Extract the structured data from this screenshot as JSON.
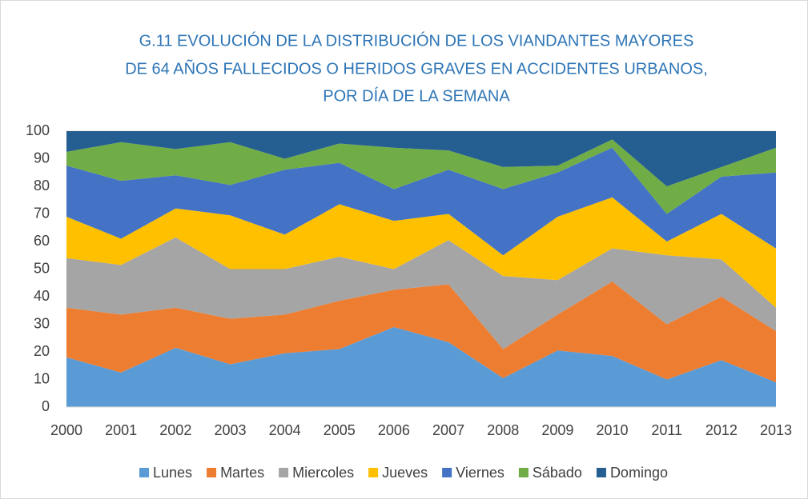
{
  "chart_data": {
    "type": "stacked-area",
    "title": [
      "G.11  EVOLUCIÓN DE LA DISTRIBUCIÓN DE LOS VIANDANTES MAYORES",
      "DE 64 AÑOS  FALLECIDOS O HERIDOS GRAVES EN ACCIDENTES URBANOS,",
      "POR  DÍA DE LA SEMANA"
    ],
    "categories": [
      "2000",
      "2001",
      "2002",
      "2003",
      "2004",
      "2005",
      "2006",
      "2007",
      "2008",
      "2009",
      "2010",
      "2011",
      "2012",
      "2013"
    ],
    "ylim": [
      0,
      100
    ],
    "yticks": [
      0,
      10,
      20,
      30,
      40,
      50,
      60,
      70,
      80,
      90,
      100
    ],
    "grid": true,
    "legend": "bottom",
    "series": [
      {
        "name": "Lunes",
        "color": "#5b9bd5",
        "values": [
          18,
          12.5,
          21.5,
          15.5,
          19.5,
          21,
          29,
          23.5,
          10.5,
          20.5,
          18.5,
          10,
          17,
          9
        ]
      },
      {
        "name": "Martes",
        "color": "#ed7d31",
        "values": [
          18,
          21,
          14.5,
          16.5,
          14,
          17.5,
          13.5,
          21,
          10.5,
          13,
          27,
          20,
          23,
          18.5
        ]
      },
      {
        "name": "Miercoles",
        "color": "#a5a5a5",
        "values": [
          18,
          18,
          25.5,
          18,
          16.5,
          16,
          7.5,
          16,
          26.5,
          12.5,
          12,
          25,
          13.5,
          8.5
        ]
      },
      {
        "name": "Jueves",
        "color": "#ffc000",
        "values": [
          15,
          9.5,
          10.5,
          19.5,
          12.5,
          19,
          17.5,
          9.5,
          7.5,
          23,
          18.5,
          5,
          16.5,
          21.5
        ]
      },
      {
        "name": "Viernes",
        "color": "#4472c4",
        "values": [
          18.5,
          21,
          12,
          11,
          23.5,
          15,
          11.5,
          16,
          24,
          16,
          18,
          10,
          13.5,
          27.5
        ]
      },
      {
        "name": "Sábado",
        "color": "#70ad47",
        "values": [
          5,
          14,
          9.5,
          15.5,
          4,
          7,
          15,
          7,
          8,
          2.5,
          3,
          10,
          3.5,
          9
        ]
      },
      {
        "name": "Domingo",
        "color": "#255e91",
        "values": [
          7.5,
          4,
          6.5,
          4,
          10,
          4.5,
          6,
          7,
          13,
          12.5,
          3,
          20,
          13,
          6
        ]
      }
    ]
  }
}
